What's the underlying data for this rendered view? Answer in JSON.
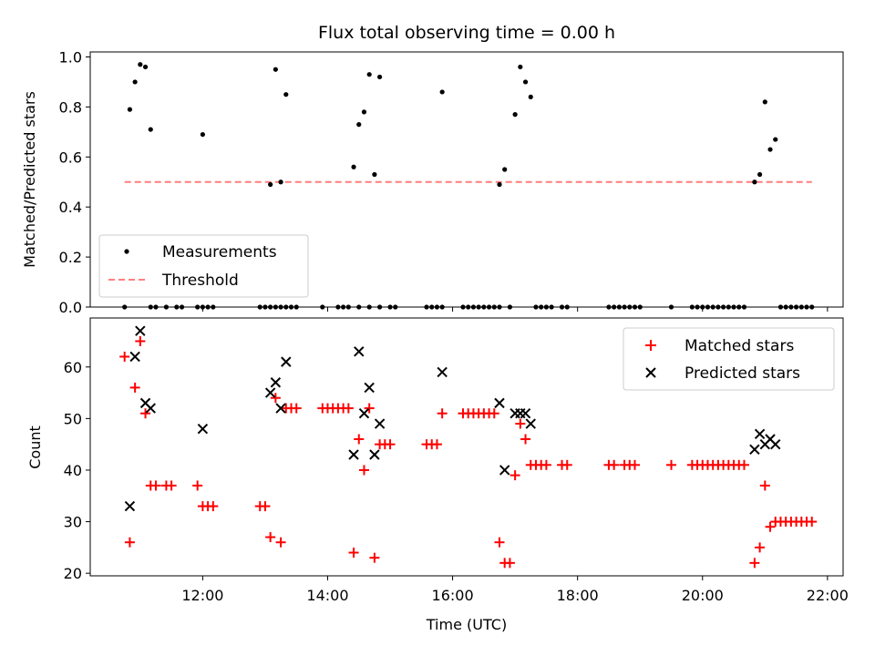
{
  "title": "Flux total observing time = 0.00 h",
  "colors": {
    "measurement": "#000000",
    "threshold": "#ff7f7f",
    "matched": "#ff0000",
    "predicted": "#000000"
  },
  "chart_data": [
    {
      "type": "scatter",
      "ylabel": "Matched/Predicted stars",
      "xlim": [
        "10:12",
        "22:15"
      ],
      "ylim": [
        0.0,
        1.02
      ],
      "yticks": [
        "0.0",
        "0.2",
        "0.4",
        "0.6",
        "0.8",
        "1.0"
      ],
      "legend_position": "lower-left",
      "series": [
        {
          "name": "Measurements",
          "marker": "dot",
          "points": [
            [
              "10:50",
              0.79
            ],
            [
              "10:55",
              0.9
            ],
            [
              "11:00",
              0.97
            ],
            [
              "11:05",
              0.96
            ],
            [
              "11:10",
              0.71
            ],
            [
              "12:00",
              0.69
            ],
            [
              "13:05",
              0.49
            ],
            [
              "13:10",
              0.95
            ],
            [
              "13:15",
              0.5
            ],
            [
              "13:20",
              0.85
            ],
            [
              "14:25",
              0.56
            ],
            [
              "14:30",
              0.73
            ],
            [
              "14:35",
              0.78
            ],
            [
              "14:40",
              0.93
            ],
            [
              "14:45",
              0.53
            ],
            [
              "14:50",
              0.92
            ],
            [
              "15:50",
              0.86
            ],
            [
              "16:45",
              0.49
            ],
            [
              "16:50",
              0.55
            ],
            [
              "17:00",
              0.77
            ],
            [
              "17:05",
              0.96
            ],
            [
              "17:10",
              0.9
            ],
            [
              "17:15",
              0.84
            ],
            [
              "20:50",
              0.5
            ],
            [
              "20:55",
              0.53
            ],
            [
              "21:00",
              0.82
            ],
            [
              "21:05",
              0.63
            ],
            [
              "21:10",
              0.67
            ],
            [
              "10:45",
              0
            ],
            [
              "11:10",
              0
            ],
            [
              "11:15",
              0
            ],
            [
              "11:25",
              0
            ],
            [
              "11:35",
              0
            ],
            [
              "11:40",
              0
            ],
            [
              "11:55",
              0
            ],
            [
              "12:00",
              0
            ],
            [
              "12:05",
              0
            ],
            [
              "12:10",
              0
            ],
            [
              "12:55",
              0
            ],
            [
              "13:00",
              0
            ],
            [
              "13:05",
              0
            ],
            [
              "13:10",
              0
            ],
            [
              "13:15",
              0
            ],
            [
              "13:20",
              0
            ],
            [
              "13:25",
              0
            ],
            [
              "13:30",
              0
            ],
            [
              "13:55",
              0
            ],
            [
              "14:10",
              0
            ],
            [
              "14:15",
              0
            ],
            [
              "14:20",
              0
            ],
            [
              "14:30",
              0
            ],
            [
              "14:40",
              0
            ],
            [
              "14:50",
              0
            ],
            [
              "15:00",
              0
            ],
            [
              "15:05",
              0
            ],
            [
              "15:35",
              0
            ],
            [
              "15:40",
              0
            ],
            [
              "15:45",
              0
            ],
            [
              "15:50",
              0
            ],
            [
              "16:10",
              0
            ],
            [
              "16:15",
              0
            ],
            [
              "16:20",
              0
            ],
            [
              "16:25",
              0
            ],
            [
              "16:30",
              0
            ],
            [
              "16:35",
              0
            ],
            [
              "16:40",
              0
            ],
            [
              "16:45",
              0
            ],
            [
              "16:55",
              0
            ],
            [
              "17:20",
              0
            ],
            [
              "17:25",
              0
            ],
            [
              "17:30",
              0
            ],
            [
              "17:35",
              0
            ],
            [
              "17:45",
              0
            ],
            [
              "17:50",
              0
            ],
            [
              "18:30",
              0
            ],
            [
              "18:35",
              0
            ],
            [
              "18:40",
              0
            ],
            [
              "18:45",
              0
            ],
            [
              "18:50",
              0
            ],
            [
              "18:55",
              0
            ],
            [
              "19:00",
              0
            ],
            [
              "19:30",
              0
            ],
            [
              "19:50",
              0
            ],
            [
              "19:55",
              0
            ],
            [
              "20:00",
              0
            ],
            [
              "20:05",
              0
            ],
            [
              "20:10",
              0
            ],
            [
              "20:15",
              0
            ],
            [
              "20:20",
              0
            ],
            [
              "20:25",
              0
            ],
            [
              "20:30",
              0
            ],
            [
              "20:35",
              0
            ],
            [
              "20:40",
              0
            ],
            [
              "21:15",
              0
            ],
            [
              "21:20",
              0
            ],
            [
              "21:25",
              0
            ],
            [
              "21:30",
              0
            ],
            [
              "21:35",
              0
            ],
            [
              "21:40",
              0
            ],
            [
              "21:45",
              0
            ]
          ]
        },
        {
          "name": "Threshold",
          "marker": "dashed-line",
          "points": [
            [
              "10:45",
              0.5
            ],
            [
              "21:45",
              0.5
            ]
          ]
        }
      ]
    },
    {
      "type": "scatter",
      "xlabel": "Time (UTC)",
      "ylabel": "Count",
      "xlim": [
        "10:12",
        "22:15"
      ],
      "ylim": [
        19.5,
        69.5
      ],
      "xticks": [
        "12:00",
        "14:00",
        "16:00",
        "18:00",
        "20:00",
        "22:00"
      ],
      "yticks": [
        "20",
        "30",
        "40",
        "50",
        "60"
      ],
      "legend_position": "top-right",
      "series": [
        {
          "name": "Matched stars",
          "marker": "plus",
          "points": [
            [
              "10:45",
              62
            ],
            [
              "10:50",
              26
            ],
            [
              "10:55",
              56
            ],
            [
              "11:00",
              65
            ],
            [
              "11:05",
              51
            ],
            [
              "11:10",
              37
            ],
            [
              "11:15",
              37
            ],
            [
              "11:25",
              37
            ],
            [
              "11:30",
              37
            ],
            [
              "11:55",
              37
            ],
            [
              "12:00",
              33
            ],
            [
              "12:05",
              33
            ],
            [
              "12:10",
              33
            ],
            [
              "12:55",
              33
            ],
            [
              "13:00",
              33
            ],
            [
              "13:05",
              27
            ],
            [
              "13:10",
              54
            ],
            [
              "13:15",
              26
            ],
            [
              "13:20",
              52
            ],
            [
              "13:25",
              52
            ],
            [
              "13:30",
              52
            ],
            [
              "13:55",
              52
            ],
            [
              "14:00",
              52
            ],
            [
              "14:05",
              52
            ],
            [
              "14:10",
              52
            ],
            [
              "14:15",
              52
            ],
            [
              "14:20",
              52
            ],
            [
              "14:25",
              24
            ],
            [
              "14:30",
              46
            ],
            [
              "14:35",
              40
            ],
            [
              "14:40",
              52
            ],
            [
              "14:45",
              23
            ],
            [
              "14:50",
              45
            ],
            [
              "14:55",
              45
            ],
            [
              "15:00",
              45
            ],
            [
              "15:35",
              45
            ],
            [
              "15:40",
              45
            ],
            [
              "15:45",
              45
            ],
            [
              "15:50",
              51
            ],
            [
              "16:10",
              51
            ],
            [
              "16:15",
              51
            ],
            [
              "16:20",
              51
            ],
            [
              "16:25",
              51
            ],
            [
              "16:30",
              51
            ],
            [
              "16:35",
              51
            ],
            [
              "16:40",
              51
            ],
            [
              "16:45",
              26
            ],
            [
              "16:50",
              22
            ],
            [
              "16:55",
              22
            ],
            [
              "17:00",
              39
            ],
            [
              "17:05",
              49
            ],
            [
              "17:10",
              46
            ],
            [
              "17:15",
              41
            ],
            [
              "17:20",
              41
            ],
            [
              "17:25",
              41
            ],
            [
              "17:30",
              41
            ],
            [
              "17:45",
              41
            ],
            [
              "17:50",
              41
            ],
            [
              "18:30",
              41
            ],
            [
              "18:35",
              41
            ],
            [
              "18:45",
              41
            ],
            [
              "18:50",
              41
            ],
            [
              "18:55",
              41
            ],
            [
              "19:30",
              41
            ],
            [
              "19:50",
              41
            ],
            [
              "19:55",
              41
            ],
            [
              "20:00",
              41
            ],
            [
              "20:05",
              41
            ],
            [
              "20:10",
              41
            ],
            [
              "20:15",
              41
            ],
            [
              "20:20",
              41
            ],
            [
              "20:25",
              41
            ],
            [
              "20:30",
              41
            ],
            [
              "20:35",
              41
            ],
            [
              "20:40",
              41
            ],
            [
              "20:50",
              22
            ],
            [
              "20:55",
              25
            ],
            [
              "21:00",
              37
            ],
            [
              "21:05",
              29
            ],
            [
              "21:10",
              30
            ],
            [
              "21:15",
              30
            ],
            [
              "21:20",
              30
            ],
            [
              "21:25",
              30
            ],
            [
              "21:30",
              30
            ],
            [
              "21:35",
              30
            ],
            [
              "21:40",
              30
            ],
            [
              "21:45",
              30
            ]
          ]
        },
        {
          "name": "Predicted stars",
          "marker": "x",
          "points": [
            [
              "10:50",
              33
            ],
            [
              "10:55",
              62
            ],
            [
              "11:00",
              67
            ],
            [
              "11:05",
              53
            ],
            [
              "11:10",
              52
            ],
            [
              "12:00",
              48
            ],
            [
              "13:05",
              55
            ],
            [
              "13:10",
              57
            ],
            [
              "13:15",
              52
            ],
            [
              "13:20",
              61
            ],
            [
              "14:25",
              43
            ],
            [
              "14:30",
              63
            ],
            [
              "14:35",
              51
            ],
            [
              "14:40",
              56
            ],
            [
              "14:45",
              43
            ],
            [
              "14:50",
              49
            ],
            [
              "15:50",
              59
            ],
            [
              "16:45",
              53
            ],
            [
              "16:50",
              40
            ],
            [
              "17:00",
              51
            ],
            [
              "17:05",
              51
            ],
            [
              "17:10",
              51
            ],
            [
              "17:15",
              49
            ],
            [
              "20:50",
              44
            ],
            [
              "20:55",
              47
            ],
            [
              "21:00",
              45
            ],
            [
              "21:05",
              46
            ],
            [
              "21:10",
              45
            ]
          ]
        }
      ]
    }
  ]
}
